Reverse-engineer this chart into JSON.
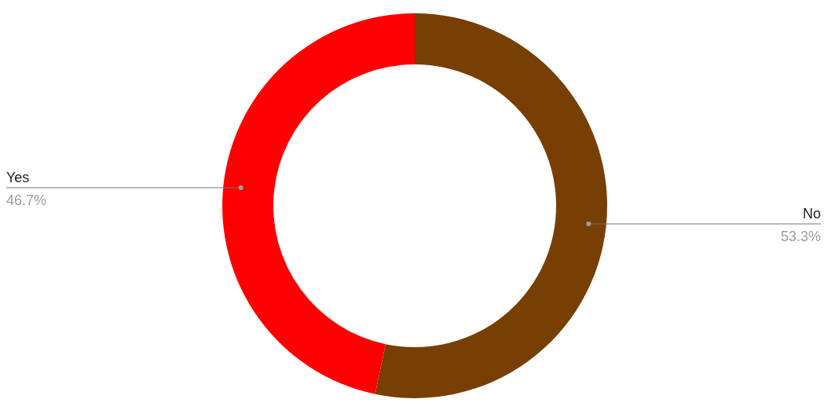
{
  "chart_data": {
    "type": "donut",
    "categories": [
      "No",
      "Yes"
    ],
    "values": [
      53.3,
      46.7
    ],
    "colors": [
      "#783f04",
      "#ff0000"
    ],
    "value_labels": [
      "53.3%",
      "46.7%"
    ]
  }
}
